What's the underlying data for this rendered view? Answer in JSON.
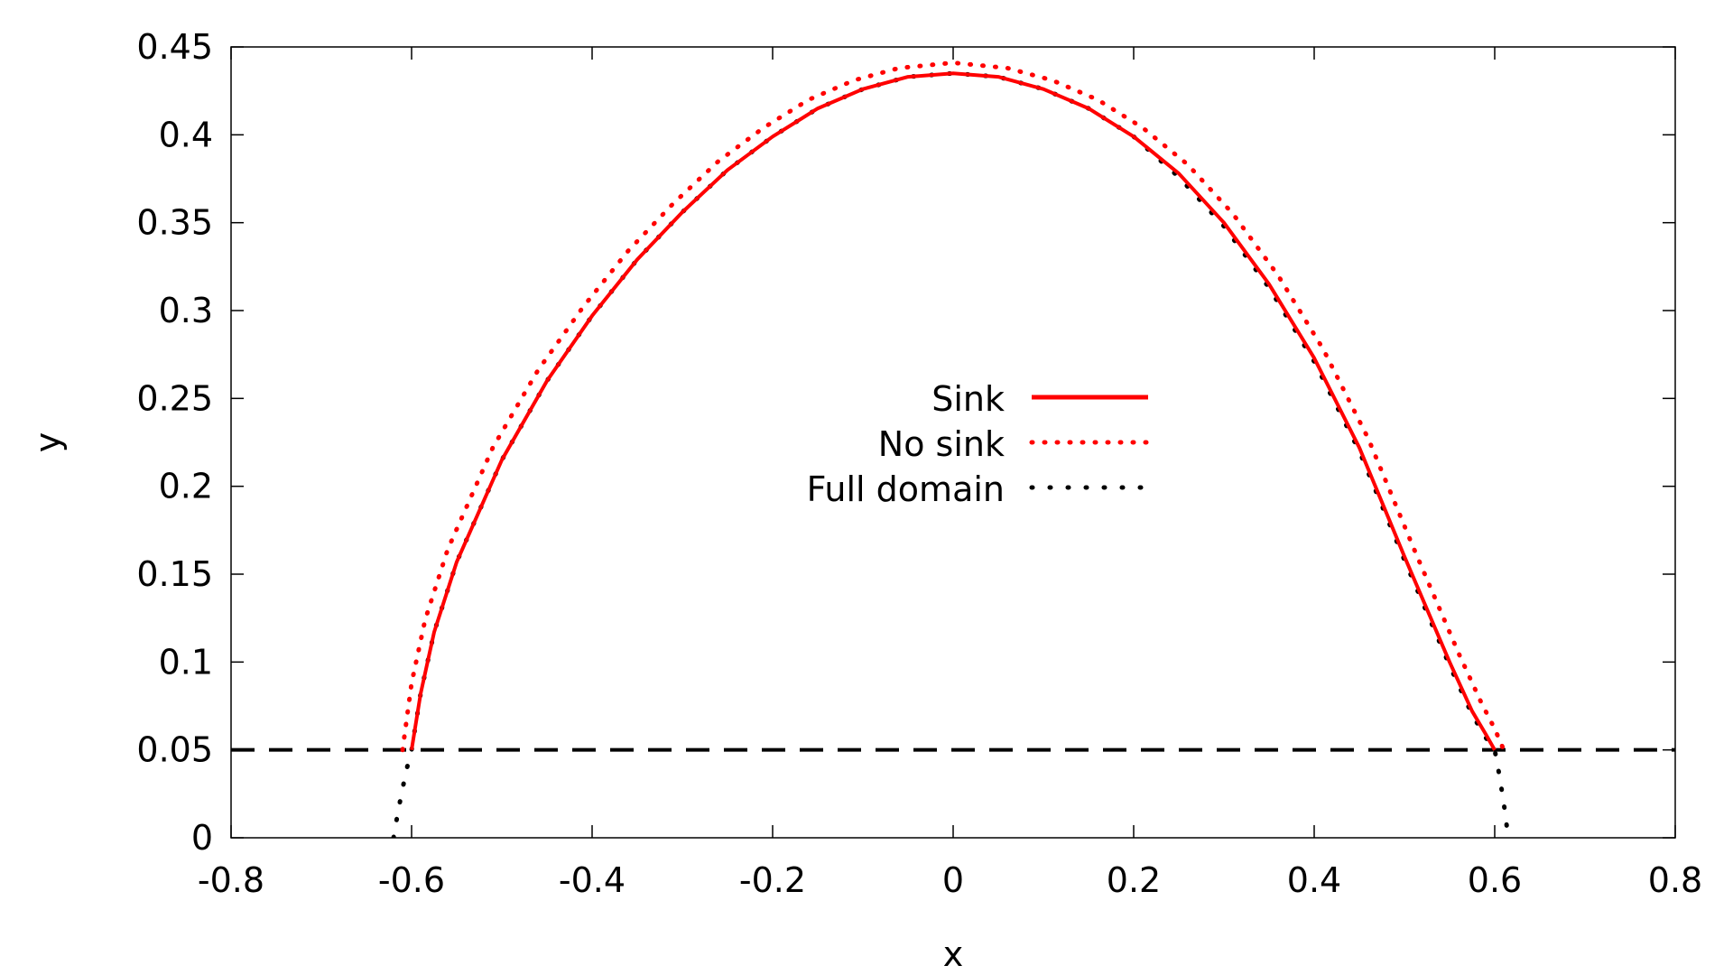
{
  "chart_data": {
    "type": "line",
    "title": "",
    "xlabel": "x",
    "ylabel": "y",
    "xlim": [
      -0.8,
      0.8
    ],
    "ylim": [
      0,
      0.45
    ],
    "xticks": [
      "-0.8",
      "-0.6",
      "-0.4",
      "-0.2",
      "0",
      "0.2",
      "0.4",
      "0.6",
      "0.8"
    ],
    "yticks": [
      "0",
      "0.05",
      "0.1",
      "0.15",
      "0.2",
      "0.25",
      "0.3",
      "0.35",
      "0.4",
      "0.45"
    ],
    "grid": false,
    "legend_position": "center",
    "reference_line": {
      "y": 0.05,
      "style": "dashed",
      "color": "#000000"
    },
    "series": [
      {
        "name": "Sink",
        "style": "solid",
        "color": "#ff0000",
        "x": [
          -0.6,
          -0.59,
          -0.575,
          -0.55,
          -0.5,
          -0.45,
          -0.4,
          -0.35,
          -0.3,
          -0.25,
          -0.2,
          -0.15,
          -0.1,
          -0.05,
          0.0,
          0.05,
          0.1,
          0.15,
          0.2,
          0.25,
          0.3,
          0.35,
          0.4,
          0.45,
          0.5,
          0.55,
          0.575,
          0.59,
          0.6
        ],
        "y": [
          0.05,
          0.082,
          0.117,
          0.157,
          0.215,
          0.26,
          0.297,
          0.329,
          0.356,
          0.38,
          0.399,
          0.415,
          0.426,
          0.433,
          0.435,
          0.433,
          0.426,
          0.415,
          0.399,
          0.378,
          0.35,
          0.315,
          0.273,
          0.222,
          0.16,
          0.1,
          0.072,
          0.059,
          0.05
        ]
      },
      {
        "name": "No sink",
        "style": "dotted",
        "color": "#ff0000",
        "x": [
          -0.61,
          -0.6,
          -0.585,
          -0.56,
          -0.51,
          -0.46,
          -0.41,
          -0.36,
          -0.31,
          -0.26,
          -0.21,
          -0.16,
          -0.11,
          -0.06,
          0.0,
          0.06,
          0.11,
          0.16,
          0.21,
          0.26,
          0.31,
          0.36,
          0.41,
          0.46,
          0.51,
          0.56,
          0.585,
          0.6,
          0.61
        ],
        "y": [
          0.05,
          0.088,
          0.124,
          0.164,
          0.222,
          0.266,
          0.302,
          0.334,
          0.361,
          0.385,
          0.404,
          0.42,
          0.431,
          0.438,
          0.441,
          0.438,
          0.431,
          0.42,
          0.404,
          0.383,
          0.355,
          0.32,
          0.278,
          0.227,
          0.165,
          0.105,
          0.077,
          0.062,
          0.05
        ]
      },
      {
        "name": "Full domain",
        "style": "dotted",
        "color": "#000000",
        "x": [
          -0.62,
          -0.615,
          -0.61,
          -0.605,
          -0.6,
          -0.59,
          -0.575,
          -0.55,
          -0.5,
          -0.45,
          -0.4,
          -0.35,
          -0.3,
          -0.25,
          -0.2,
          -0.15,
          -0.1,
          -0.05,
          0.0,
          0.05,
          0.1,
          0.15,
          0.2,
          0.25,
          0.3,
          0.35,
          0.4,
          0.45,
          0.5,
          0.55,
          0.575,
          0.59,
          0.6,
          0.605,
          0.61,
          0.615
        ],
        "y": [
          0.0,
          0.015,
          0.028,
          0.04,
          0.05,
          0.082,
          0.117,
          0.157,
          0.215,
          0.26,
          0.297,
          0.329,
          0.356,
          0.38,
          0.399,
          0.415,
          0.426,
          0.433,
          0.435,
          0.433,
          0.426,
          0.415,
          0.399,
          0.376,
          0.348,
          0.313,
          0.271,
          0.22,
          0.158,
          0.098,
          0.07,
          0.057,
          0.05,
          0.036,
          0.02,
          0.0
        ]
      }
    ]
  }
}
